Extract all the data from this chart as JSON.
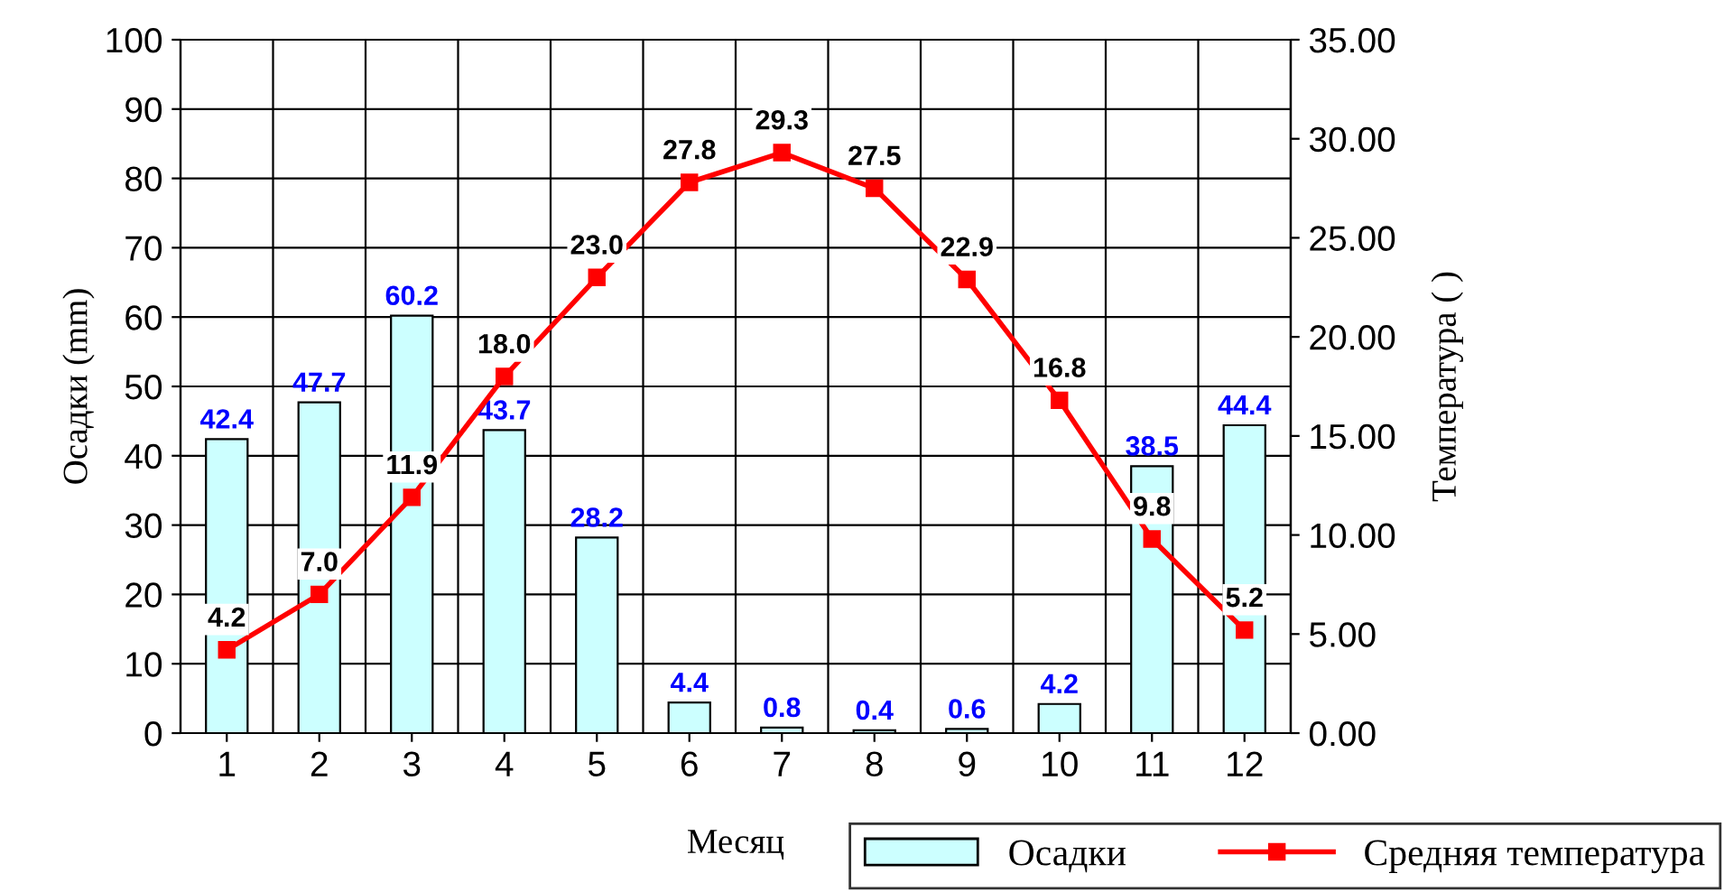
{
  "chart_data": {
    "type": "bar",
    "xlabel": "Месяц",
    "ylabel": "Осадки (mm)",
    "y2label": "Температура ( )",
    "categories": [
      "1",
      "2",
      "3",
      "4",
      "5",
      "6",
      "7",
      "8",
      "9",
      "10",
      "11",
      "12"
    ],
    "series": [
      {
        "name": "Осадки",
        "color": "#ccffff",
        "values": [
          42.4,
          47.7,
          60.2,
          43.7,
          28.2,
          4.4,
          0.8,
          0.4,
          0.6,
          4.2,
          38.5,
          44.4
        ],
        "value_labels": [
          "42.4",
          "47.7",
          "60.2",
          "43.7",
          "28.2",
          "4.4",
          "0.8",
          "0.4",
          "0.6",
          "4.2",
          "38.5",
          "44.4"
        ]
      },
      {
        "name": "Средняя температура",
        "type": "line",
        "axis": "y2",
        "color": "#ff0000",
        "values": [
          4.2,
          7.0,
          11.9,
          18.0,
          23.0,
          27.8,
          29.3,
          27.5,
          22.9,
          16.8,
          9.8,
          5.2
        ],
        "value_labels": [
          "4.2",
          "7.0",
          "11.9",
          "18.0",
          "23.0",
          "27.8",
          "29.3",
          "27.5",
          "22.9",
          "16.8",
          "9.8",
          "5.2"
        ]
      }
    ],
    "ylim": [
      0,
      100
    ],
    "yticks": [
      0,
      10,
      20,
      30,
      40,
      50,
      60,
      70,
      80,
      90,
      100
    ],
    "y2lim": [
      0,
      35
    ],
    "y2ticks": [
      {
        "value": 0,
        "label": "0.00"
      },
      {
        "value": 5,
        "label": "5.00"
      },
      {
        "value": 10,
        "label": "10.00"
      },
      {
        "value": 15,
        "label": "15.00"
      },
      {
        "value": 20,
        "label": "20.00"
      },
      {
        "value": 25,
        "label": "25.00"
      },
      {
        "value": 30,
        "label": "30.00"
      },
      {
        "value": 35,
        "label": "35.00"
      }
    ],
    "grid": true,
    "legend": "bottom right",
    "marker": "square",
    "line_style": "solid"
  }
}
